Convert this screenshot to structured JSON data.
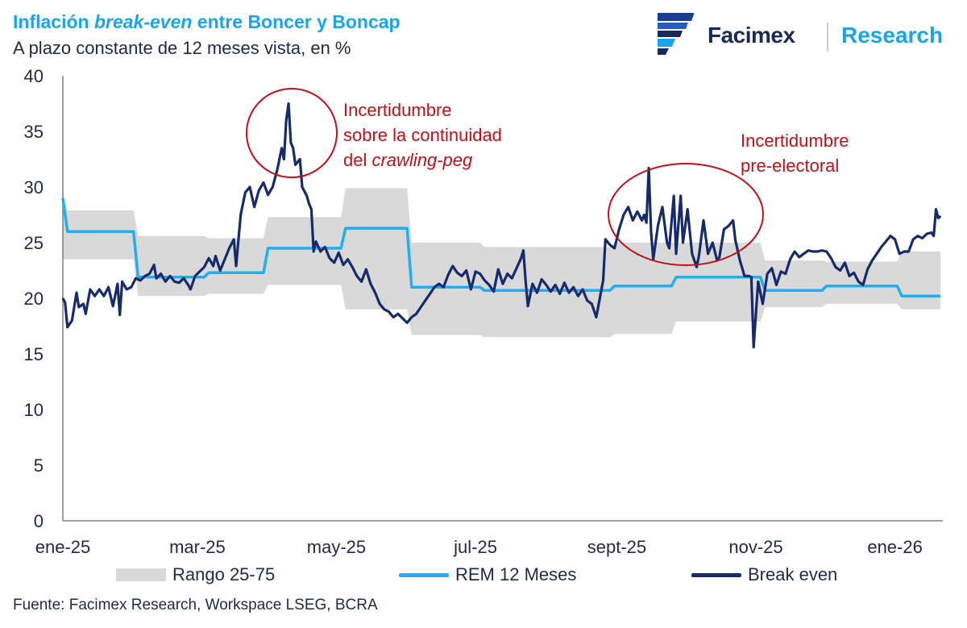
{
  "header": {
    "title_part1": "Inflación ",
    "title_italic": "break-even",
    "title_part2": " entre Boncer y Boncap",
    "subtitle": "A plazo constante de 12 meses vista, en %"
  },
  "logo": {
    "brand": "Facimex",
    "division": "Research"
  },
  "source": "Fuente: Facimex Research, Workspace LSEG, BCRA",
  "colors": {
    "break_even": "#172b6a",
    "rem": "#22aef0",
    "band": "#d9d9d9",
    "annotation": "#b8121a",
    "title": "#1aa3ee"
  },
  "chart_data": {
    "type": "line",
    "title": "Inflación break-even entre Boncer y Boncap",
    "subtitle": "A plazo constante de 12 meses vista, en %",
    "ylim": [
      0,
      40
    ],
    "yticks": [
      0,
      5,
      10,
      15,
      20,
      25,
      30,
      35,
      40
    ],
    "xlim": [
      0,
      386
    ],
    "xticks": [
      {
        "label": "ene-25",
        "x": 0
      },
      {
        "label": "mar-25",
        "x": 59
      },
      {
        "label": "may-25",
        "x": 120
      },
      {
        "label": "jul-25",
        "x": 181
      },
      {
        "label": "sept-25",
        "x": 243
      },
      {
        "label": "nov-25",
        "x": 304
      },
      {
        "label": "ene-26",
        "x": 365
      }
    ],
    "legend": [
      "Rango 25-75",
      "REM 12 Meses",
      "Break even"
    ],
    "series": [
      {
        "name": "Break even",
        "points": [
          [
            0,
            20
          ],
          [
            1,
            19.6
          ],
          [
            2,
            17.4
          ],
          [
            4,
            18
          ],
          [
            6,
            20.5
          ],
          [
            7,
            19.2
          ],
          [
            9,
            19.5
          ],
          [
            10,
            18.6
          ],
          [
            12,
            20.8
          ],
          [
            14,
            20.2
          ],
          [
            16,
            20.8
          ],
          [
            18,
            20.2
          ],
          [
            20,
            21
          ],
          [
            22,
            19.3
          ],
          [
            24,
            21.3
          ],
          [
            25,
            18.5
          ],
          [
            26,
            21.5
          ],
          [
            28,
            20.8
          ],
          [
            30,
            21
          ],
          [
            32,
            21.8
          ],
          [
            34,
            21.6
          ],
          [
            36,
            22
          ],
          [
            38,
            22.2
          ],
          [
            40,
            23
          ],
          [
            41,
            21.8
          ],
          [
            43,
            22.2
          ],
          [
            45,
            21.5
          ],
          [
            47,
            22
          ],
          [
            49,
            21.5
          ],
          [
            51,
            21.4
          ],
          [
            53,
            21.8
          ],
          [
            55,
            21.2
          ],
          [
            56,
            20.8
          ],
          [
            58,
            22
          ],
          [
            60,
            22.4
          ],
          [
            62,
            22.8
          ],
          [
            64,
            23.6
          ],
          [
            66,
            22.9
          ],
          [
            67,
            23.8
          ],
          [
            69,
            22.5
          ],
          [
            71,
            23.5
          ],
          [
            73,
            24.5
          ],
          [
            75,
            25.3
          ],
          [
            76,
            22.9
          ],
          [
            78,
            27.5
          ],
          [
            80,
            29.5
          ],
          [
            82,
            30
          ],
          [
            84,
            28.2
          ],
          [
            86,
            29.7
          ],
          [
            88,
            30.4
          ],
          [
            90,
            29.3
          ],
          [
            92,
            30
          ],
          [
            94,
            31.5
          ],
          [
            96,
            33.5
          ],
          [
            97,
            32.5
          ],
          [
            98,
            36
          ],
          [
            99,
            37.5
          ],
          [
            100,
            34
          ],
          [
            101,
            33.5
          ],
          [
            102,
            32
          ],
          [
            104,
            32.5
          ],
          [
            105,
            30
          ],
          [
            107,
            29.2
          ],
          [
            108,
            28.5
          ],
          [
            109,
            28
          ],
          [
            110,
            24.2
          ],
          [
            111,
            25.1
          ],
          [
            113,
            24.2
          ],
          [
            115,
            24.6
          ],
          [
            117,
            23.6
          ],
          [
            119,
            23.2
          ],
          [
            121,
            24.1
          ],
          [
            123,
            23
          ],
          [
            125,
            23.5
          ],
          [
            127,
            22.8
          ],
          [
            129,
            22
          ],
          [
            131,
            21.5
          ],
          [
            133,
            22.6
          ],
          [
            135,
            21.3
          ],
          [
            137,
            20.5
          ],
          [
            139,
            19.5
          ],
          [
            141,
            19
          ],
          [
            143,
            18.8
          ],
          [
            145,
            18.3
          ],
          [
            147,
            18.6
          ],
          [
            149,
            18.2
          ],
          [
            151,
            17.8
          ],
          [
            153,
            18.3
          ],
          [
            155,
            18.6
          ],
          [
            157,
            19.2
          ],
          [
            159,
            19.8
          ],
          [
            161,
            20.4
          ],
          [
            163,
            21
          ],
          [
            165,
            21.3
          ],
          [
            167,
            21
          ],
          [
            169,
            22.1
          ],
          [
            171,
            22.9
          ],
          [
            173,
            22.3
          ],
          [
            175,
            22
          ],
          [
            177,
            22.5
          ],
          [
            179,
            20.8
          ],
          [
            181,
            22.4
          ],
          [
            183,
            22.2
          ],
          [
            185,
            21.6
          ],
          [
            187,
            21.2
          ],
          [
            189,
            20.6
          ],
          [
            191,
            22.6
          ],
          [
            193,
            21.3
          ],
          [
            195,
            22.2
          ],
          [
            197,
            21.8
          ],
          [
            199,
            22.7
          ],
          [
            201,
            23.6
          ],
          [
            202,
            24.3
          ],
          [
            203,
            21.5
          ],
          [
            204,
            19.3
          ],
          [
            206,
            21.3
          ],
          [
            208,
            20.5
          ],
          [
            210,
            21.7
          ],
          [
            212,
            21.2
          ],
          [
            214,
            20.6
          ],
          [
            216,
            21.2
          ],
          [
            218,
            20.4
          ],
          [
            220,
            21.4
          ],
          [
            222,
            20.5
          ],
          [
            224,
            21
          ],
          [
            226,
            20.2
          ],
          [
            228,
            20.8
          ],
          [
            230,
            19.8
          ],
          [
            232,
            19.5
          ],
          [
            234,
            18.3
          ],
          [
            236,
            20.5
          ],
          [
            237,
            21.6
          ],
          [
            238,
            25.3
          ],
          [
            240,
            24.8
          ],
          [
            242,
            24.5
          ],
          [
            244,
            26.2
          ],
          [
            246,
            27.5
          ],
          [
            248,
            28.2
          ],
          [
            250,
            27
          ],
          [
            252,
            27.8
          ],
          [
            254,
            27
          ],
          [
            255,
            27.5
          ],
          [
            256,
            26.8
          ],
          [
            257,
            31.7
          ],
          [
            258,
            26
          ],
          [
            259,
            23.5
          ],
          [
            261,
            26.5
          ],
          [
            263,
            28.2
          ],
          [
            265,
            25
          ],
          [
            266,
            24.5
          ],
          [
            268,
            29.2
          ],
          [
            269,
            24
          ],
          [
            271,
            29.2
          ],
          [
            272,
            25
          ],
          [
            274,
            28
          ],
          [
            276,
            24
          ],
          [
            278,
            22.8
          ],
          [
            279,
            23.8
          ],
          [
            281,
            27
          ],
          [
            283,
            24
          ],
          [
            285,
            25
          ],
          [
            287,
            23.4
          ],
          [
            288,
            23.7
          ],
          [
            290,
            26.2
          ],
          [
            292,
            26.5
          ],
          [
            294,
            27
          ],
          [
            295,
            25.2
          ],
          [
            297,
            23.4
          ],
          [
            299,
            22
          ],
          [
            301,
            22
          ],
          [
            302,
            21.9
          ],
          [
            303,
            15.6
          ],
          [
            305,
            21.5
          ],
          [
            307,
            19.5
          ],
          [
            309,
            22.2
          ],
          [
            311,
            22.7
          ],
          [
            313,
            21.2
          ],
          [
            315,
            22.4
          ],
          [
            317,
            22.2
          ],
          [
            319,
            23.5
          ],
          [
            321,
            24.2
          ],
          [
            323,
            23.7
          ],
          [
            325,
            24
          ],
          [
            327,
            24.3
          ],
          [
            329,
            24.2
          ],
          [
            331,
            24.2
          ],
          [
            333,
            24.3
          ],
          [
            335,
            24.2
          ],
          [
            337,
            23.6
          ],
          [
            339,
            22.8
          ],
          [
            341,
            22.5
          ],
          [
            343,
            23.2
          ],
          [
            345,
            22
          ],
          [
            347,
            22.3
          ],
          [
            349,
            21.5
          ],
          [
            351,
            21.2
          ],
          [
            353,
            22.6
          ],
          [
            355,
            23.4
          ],
          [
            357,
            24
          ],
          [
            359,
            24.6
          ],
          [
            361,
            25.1
          ],
          [
            363,
            25.6
          ],
          [
            365,
            25.3
          ],
          [
            367,
            24
          ],
          [
            369,
            24.2
          ],
          [
            371,
            24.2
          ],
          [
            373,
            25.3
          ],
          [
            375,
            25.6
          ],
          [
            377,
            25.4
          ],
          [
            379,
            25.8
          ],
          [
            381,
            25.9
          ],
          [
            382,
            25.6
          ],
          [
            383,
            28
          ],
          [
            384,
            27.2
          ],
          [
            385,
            27.4
          ]
        ]
      },
      {
        "name": "REM 12 Meses",
        "points": [
          [
            0,
            29
          ],
          [
            2,
            26
          ],
          [
            31,
            26
          ],
          [
            33,
            21.9
          ],
          [
            62,
            21.9
          ],
          [
            64,
            22.3
          ],
          [
            88,
            22.3
          ],
          [
            90,
            24.5
          ],
          [
            122,
            24.5
          ],
          [
            124,
            26.3
          ],
          [
            151,
            26.3
          ],
          [
            153,
            21
          ],
          [
            183,
            21
          ],
          [
            185,
            20.7
          ],
          [
            240,
            20.7
          ],
          [
            242,
            21.1
          ],
          [
            267,
            21.1
          ],
          [
            269,
            21.9
          ],
          [
            306,
            21.9
          ],
          [
            308,
            20.7
          ],
          [
            333,
            20.7
          ],
          [
            335,
            21.1
          ],
          [
            366,
            21.1
          ],
          [
            368,
            20.2
          ],
          [
            385,
            20.2
          ]
        ]
      }
    ],
    "band": {
      "name": "Rango 25-75",
      "upper": [
        [
          0,
          29
        ],
        [
          2,
          27.9
        ],
        [
          31,
          27.9
        ],
        [
          33,
          25.6
        ],
        [
          62,
          25.6
        ],
        [
          64,
          25.4
        ],
        [
          88,
          25.4
        ],
        [
          90,
          27.3
        ],
        [
          122,
          27.3
        ],
        [
          124,
          29.9
        ],
        [
          151,
          29.9
        ],
        [
          153,
          25
        ],
        [
          183,
          25
        ],
        [
          185,
          24.6
        ],
        [
          240,
          24.6
        ],
        [
          242,
          25
        ],
        [
          267,
          25
        ],
        [
          269,
          25
        ],
        [
          306,
          25
        ],
        [
          308,
          23.4
        ],
        [
          333,
          23.4
        ],
        [
          335,
          23.3
        ],
        [
          366,
          23.3
        ],
        [
          368,
          24.2
        ],
        [
          385,
          24.2
        ]
      ],
      "lower": [
        [
          0,
          23.5
        ],
        [
          2,
          23.5
        ],
        [
          31,
          23.5
        ],
        [
          33,
          20.2
        ],
        [
          62,
          20.2
        ],
        [
          64,
          20.4
        ],
        [
          88,
          20.4
        ],
        [
          90,
          21.2
        ],
        [
          122,
          21.2
        ],
        [
          124,
          19
        ],
        [
          151,
          19
        ],
        [
          153,
          16.7
        ],
        [
          183,
          16.7
        ],
        [
          185,
          16.5
        ],
        [
          240,
          16.5
        ],
        [
          242,
          16.8
        ],
        [
          267,
          16.8
        ],
        [
          269,
          17.9
        ],
        [
          306,
          17.9
        ],
        [
          308,
          19.2
        ],
        [
          333,
          19.2
        ],
        [
          335,
          19.5
        ],
        [
          366,
          19.5
        ],
        [
          368,
          19
        ],
        [
          385,
          19
        ]
      ]
    },
    "annotations": [
      {
        "lines": [
          "Incertidumbre",
          "sobre la continuidad",
          "del "
        ],
        "italic_tail": "crawling-peg"
      },
      {
        "lines": [
          "Incertidumbre",
          "pre-electoral"
        ]
      }
    ]
  }
}
